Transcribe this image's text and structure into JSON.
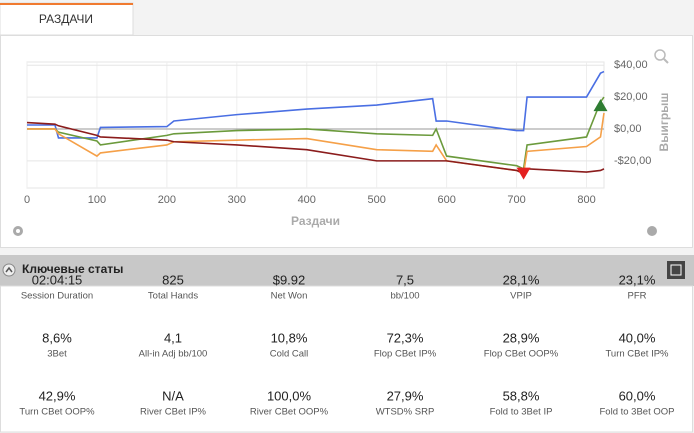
{
  "tab": "РАЗДАЧИ",
  "chart_data": {
    "type": "line",
    "xlabel": "Раздачи",
    "ylabel": "Выигрыш",
    "x": [
      0,
      40,
      45,
      100,
      105,
      200,
      210,
      300,
      400,
      500,
      580,
      585,
      600,
      700,
      710,
      715,
      800,
      820,
      825
    ],
    "xlim": [
      0,
      825
    ],
    "ylim": [
      -37,
      42
    ],
    "xticks": [
      0,
      100,
      200,
      300,
      400,
      500,
      600,
      700,
      800
    ],
    "yticks": [
      {
        "value": -20,
        "label": "-$20,00"
      },
      {
        "value": 0,
        "label": "$0,00"
      },
      {
        "value": 20,
        "label": "$20,00"
      },
      {
        "value": 40,
        "label": "$40,00"
      }
    ],
    "grid": true,
    "series": [
      {
        "color": "#4a6fe3",
        "values": [
          2.5,
          2.5,
          -5.6,
          -5.6,
          1,
          1.5,
          5,
          9,
          12.5,
          15,
          19,
          5,
          5,
          -1,
          -1,
          20,
          20,
          35,
          36
        ]
      },
      {
        "color": "#6b9a3c",
        "values": [
          0,
          0,
          -2,
          -7.5,
          -10,
          -4,
          -3,
          -1,
          0,
          -3,
          -4,
          0,
          -17,
          -23,
          -25,
          -10,
          -5,
          17,
          20
        ]
      },
      {
        "color": "#f5a048",
        "values": [
          0,
          0,
          -3,
          -17,
          -15,
          -10,
          -8,
          -7,
          -6,
          -13,
          -14,
          -10,
          -20,
          -26,
          -28,
          -14,
          -11,
          -5,
          10
        ]
      },
      {
        "color": "#8b1c1c",
        "values": [
          4,
          3,
          2,
          -4,
          -5,
          -7,
          -8,
          -10,
          -13,
          -20,
          -20,
          -20,
          -20,
          -26,
          -28,
          -25,
          -27,
          -26,
          -25
        ]
      }
    ],
    "markers": [
      {
        "x": 710,
        "y": -28,
        "color": "#e32020",
        "shape": "down"
      },
      {
        "x": 820,
        "y": 15,
        "color": "#2e7d32",
        "shape": "up"
      }
    ]
  },
  "stats": {
    "title": "Ключевые статы",
    "items": [
      {
        "value": "02:04:15",
        "label": "Session Duration"
      },
      {
        "value": "825",
        "label": "Total Hands"
      },
      {
        "value": "$9.92",
        "label": "Net Won"
      },
      {
        "value": "7,5",
        "label": "bb/100"
      },
      {
        "value": "28,1%",
        "label": "VPIP"
      },
      {
        "value": "23,1%",
        "label": "PFR"
      },
      {
        "value": "8,6%",
        "label": "3Bet"
      },
      {
        "value": "4,1",
        "label": "All-in Adj bb/100"
      },
      {
        "value": "10,8%",
        "label": "Cold Call"
      },
      {
        "value": "72,3%",
        "label": "Flop CBet IP%"
      },
      {
        "value": "28,9%",
        "label": "Flop CBet OOP%"
      },
      {
        "value": "40,0%",
        "label": "Turn CBet IP%"
      },
      {
        "value": "42,9%",
        "label": "Turn CBet OOP%"
      },
      {
        "value": "N/A",
        "label": "River CBet IP%"
      },
      {
        "value": "100,0%",
        "label": "River CBet OOP%"
      },
      {
        "value": "27,9%",
        "label": "WTSD% SRP"
      },
      {
        "value": "58,8%",
        "label": "Fold to 3Bet IP"
      },
      {
        "value": "60,0%",
        "label": "Fold to 3Bet OOP"
      }
    ]
  }
}
